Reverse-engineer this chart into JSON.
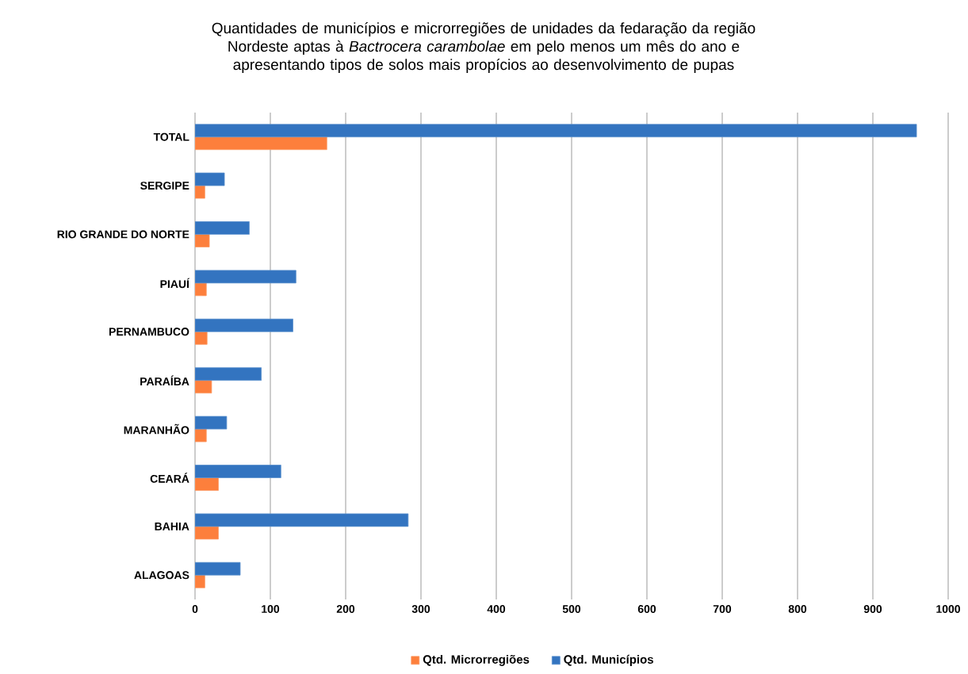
{
  "chart_data": {
    "type": "bar",
    "orientation": "horizontal",
    "title": "Quantidades de municípios e microrregiões de unidades da fedaração da região Nordeste aptas à *Bactrocera carambolae* em pelo menos um mês do ano e apresentando tipos de solos mais propícios ao desenvolvimento de pupas",
    "categories": [
      "TOTAL",
      "SERGIPE",
      "RIO GRANDE DO NORTE",
      "PIAUÍ",
      "PERNAMBUCO",
      "PARAÍBA",
      "MARANHÃO",
      "CEARÁ",
      "BAHIA",
      "ALAGOAS"
    ],
    "series": [
      {
        "name": "Qtd. Microrregiões",
        "color": "#fd7f3c",
        "values": [
          175,
          13,
          19,
          15,
          16,
          22,
          15,
          31,
          31,
          13
        ]
      },
      {
        "name": "Qtd. Municípios",
        "color": "#3374c0",
        "values": [
          958,
          39,
          72,
          134,
          130,
          88,
          42,
          114,
          283,
          60
        ]
      }
    ],
    "xlim": [
      0,
      1000
    ],
    "xticks": [
      0,
      100,
      200,
      300,
      400,
      500,
      600,
      700,
      800,
      900,
      1000
    ],
    "grid": "x",
    "legend": "bottom"
  }
}
